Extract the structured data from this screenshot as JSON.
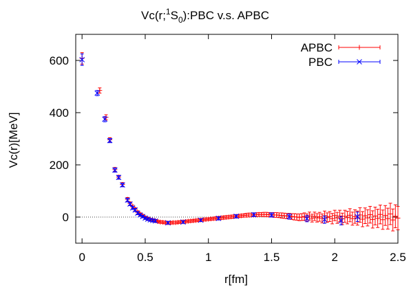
{
  "chart_data": {
    "type": "scatter",
    "title_parts": {
      "pre": "Vc(r;",
      "sup": "1",
      "mid": "S",
      "sub": "0",
      "post": "):PBC v.s. APBC"
    },
    "xlabel": "r[fm]",
    "ylabel": "Vc(r)[MeV]",
    "xlim": [
      -0.05,
      2.5
    ],
    "ylim": [
      -100,
      700
    ],
    "xticks": [
      0,
      0.5,
      1,
      1.5,
      2,
      2.5
    ],
    "xtick_labels": [
      "0",
      "0.5",
      "1",
      "1.5",
      "2",
      "2.5"
    ],
    "yticks": [
      0,
      200,
      400,
      600
    ],
    "ytick_labels": [
      "0",
      "200",
      "400",
      "600"
    ],
    "zero_line": true,
    "legend_position": "top-right",
    "series": [
      {
        "name": "APBC",
        "color": "#ff0000",
        "marker": "plus",
        "points": [
          [
            0.0,
            608,
            22
          ],
          [
            0.14,
            485,
            10
          ],
          [
            0.19,
            382,
            10
          ],
          [
            0.22,
            296,
            8
          ],
          [
            0.26,
            182,
            8
          ],
          [
            0.29,
            153,
            7
          ],
          [
            0.32,
            125,
            7
          ],
          [
            0.36,
            68,
            7
          ],
          [
            0.38,
            52,
            6
          ],
          [
            0.4,
            40,
            6
          ],
          [
            0.42,
            30,
            6
          ],
          [
            0.44,
            18,
            6
          ],
          [
            0.46,
            11,
            5
          ],
          [
            0.48,
            5,
            5
          ],
          [
            0.5,
            -2,
            5
          ],
          [
            0.52,
            -6,
            5
          ],
          [
            0.54,
            -10,
            5
          ],
          [
            0.56,
            -12,
            5
          ],
          [
            0.58,
            -14,
            5
          ],
          [
            0.6,
            -17,
            5
          ],
          [
            0.62,
            -19,
            5
          ],
          [
            0.64,
            -20,
            5
          ],
          [
            0.66,
            -21,
            5
          ],
          [
            0.68,
            -22,
            5
          ],
          [
            0.7,
            -22,
            5
          ],
          [
            0.72,
            -21,
            5
          ],
          [
            0.74,
            -21,
            5
          ],
          [
            0.76,
            -20,
            5
          ],
          [
            0.78,
            -19,
            5
          ],
          [
            0.8,
            -18,
            5
          ],
          [
            0.82,
            -17,
            5
          ],
          [
            0.84,
            -16,
            5
          ],
          [
            0.86,
            -15,
            5
          ],
          [
            0.88,
            -14,
            5
          ],
          [
            0.9,
            -13,
            5
          ],
          [
            0.92,
            -12,
            5
          ],
          [
            0.94,
            -11,
            5
          ],
          [
            0.96,
            -10,
            5
          ],
          [
            0.98,
            -9,
            5
          ],
          [
            1.0,
            -8,
            5
          ],
          [
            1.02,
            -7,
            5
          ],
          [
            1.04,
            -6,
            5
          ],
          [
            1.06,
            -5,
            6
          ],
          [
            1.08,
            -4,
            6
          ],
          [
            1.1,
            -3,
            6
          ],
          [
            1.12,
            -2,
            6
          ],
          [
            1.14,
            -1,
            6
          ],
          [
            1.16,
            0,
            6
          ],
          [
            1.18,
            1,
            6
          ],
          [
            1.2,
            2,
            6
          ],
          [
            1.22,
            3,
            6
          ],
          [
            1.24,
            4,
            6
          ],
          [
            1.26,
            5,
            6
          ],
          [
            1.28,
            6,
            6
          ],
          [
            1.3,
            7,
            7
          ],
          [
            1.32,
            8,
            7
          ],
          [
            1.34,
            8,
            7
          ],
          [
            1.36,
            9,
            7
          ],
          [
            1.38,
            9,
            7
          ],
          [
            1.4,
            10,
            7
          ],
          [
            1.42,
            10,
            7
          ],
          [
            1.44,
            10,
            8
          ],
          [
            1.46,
            10,
            8
          ],
          [
            1.48,
            9,
            8
          ],
          [
            1.5,
            9,
            8
          ],
          [
            1.52,
            8,
            9
          ],
          [
            1.54,
            8,
            9
          ],
          [
            1.56,
            7,
            9
          ],
          [
            1.58,
            6,
            10
          ],
          [
            1.6,
            5,
            10
          ],
          [
            1.62,
            4,
            10
          ],
          [
            1.64,
            3,
            11
          ],
          [
            1.66,
            2,
            11
          ],
          [
            1.68,
            1,
            12
          ],
          [
            1.7,
            0,
            12
          ],
          [
            1.72,
            -1,
            13
          ],
          [
            1.74,
            0,
            13
          ],
          [
            1.76,
            2,
            14
          ],
          [
            1.78,
            -2,
            14
          ],
          [
            1.8,
            4,
            15
          ],
          [
            1.82,
            -4,
            15
          ],
          [
            1.84,
            3,
            16
          ],
          [
            1.86,
            -3,
            16
          ],
          [
            1.88,
            1,
            17
          ],
          [
            1.9,
            -5,
            17
          ],
          [
            1.92,
            5,
            18
          ],
          [
            1.94,
            -2,
            18
          ],
          [
            1.96,
            2,
            19
          ],
          [
            1.98,
            -6,
            20
          ],
          [
            2.0,
            6,
            20
          ],
          [
            2.02,
            -3,
            21
          ],
          [
            2.04,
            4,
            22
          ],
          [
            2.06,
            -7,
            22
          ],
          [
            2.08,
            3,
            23
          ],
          [
            2.1,
            -2,
            24
          ],
          [
            2.12,
            7,
            25
          ],
          [
            2.14,
            -6,
            25
          ],
          [
            2.16,
            2,
            26
          ],
          [
            2.18,
            -4,
            27
          ],
          [
            2.2,
            8,
            28
          ],
          [
            2.22,
            -8,
            29
          ],
          [
            2.24,
            5,
            30
          ],
          [
            2.26,
            -3,
            31
          ],
          [
            2.28,
            9,
            32
          ],
          [
            2.3,
            -9,
            33
          ],
          [
            2.32,
            4,
            34
          ],
          [
            2.34,
            -5,
            35
          ],
          [
            2.36,
            10,
            36
          ],
          [
            2.38,
            -10,
            37
          ],
          [
            2.4,
            6,
            38
          ],
          [
            2.42,
            -6,
            40
          ],
          [
            2.44,
            12,
            41
          ],
          [
            2.46,
            -11,
            42
          ],
          [
            2.48,
            3,
            44
          ],
          [
            2.5,
            -4,
            45
          ]
        ]
      },
      {
        "name": "PBC",
        "color": "#0000ff",
        "marker": "cross",
        "points": [
          [
            0.0,
            603,
            22
          ],
          [
            0.12,
            475,
            10
          ],
          [
            0.18,
            375,
            10
          ],
          [
            0.22,
            293,
            8
          ],
          [
            0.26,
            180,
            8
          ],
          [
            0.29,
            152,
            7
          ],
          [
            0.32,
            123,
            7
          ],
          [
            0.36,
            65,
            7
          ],
          [
            0.38,
            50,
            6
          ],
          [
            0.4,
            35,
            6
          ],
          [
            0.42,
            27,
            6
          ],
          [
            0.44,
            15,
            6
          ],
          [
            0.46,
            8,
            5
          ],
          [
            0.48,
            2,
            5
          ],
          [
            0.5,
            -4,
            5
          ],
          [
            0.52,
            -8,
            5
          ],
          [
            0.54,
            -11,
            5
          ],
          [
            0.56,
            -13,
            5
          ],
          [
            0.58,
            -15,
            5
          ],
          [
            0.68,
            -22,
            5
          ],
          [
            0.8,
            -19,
            5
          ],
          [
            0.94,
            -12,
            5
          ],
          [
            1.08,
            -5,
            6
          ],
          [
            1.22,
            3,
            6
          ],
          [
            1.36,
            9,
            7
          ],
          [
            1.5,
            8,
            8
          ],
          [
            1.64,
            2,
            10
          ],
          [
            1.78,
            -6,
            12
          ],
          [
            1.92,
            -10,
            14
          ],
          [
            2.05,
            -14,
            16
          ],
          [
            2.18,
            1,
            18
          ]
        ]
      }
    ]
  }
}
